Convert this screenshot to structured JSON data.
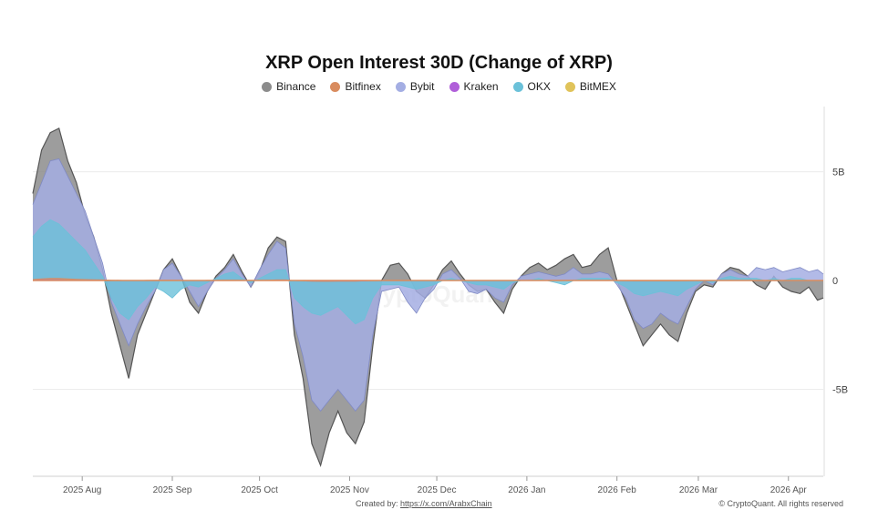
{
  "chart_data": {
    "type": "area",
    "title": "XRP Open Interest 30D (Change of XRP)",
    "xlabel": "",
    "ylabel": "",
    "ylim": [
      -9000000000,
      8000000000
    ],
    "y_ticks": [
      {
        "value": 5000000000,
        "label": "5B"
      },
      {
        "value": 0,
        "label": "0"
      },
      {
        "value": -5000000000,
        "label": "-5B"
      }
    ],
    "x_ticks": [
      {
        "date": "2025-08-01",
        "label": "2025 Aug"
      },
      {
        "date": "2025-09-01",
        "label": "2025 Sep"
      },
      {
        "date": "2025-10-01",
        "label": "2025 Oct"
      },
      {
        "date": "2025-11-01",
        "label": "2025 Nov"
      },
      {
        "date": "2025-12-01",
        "label": "2025 Dec"
      },
      {
        "date": "2026-01-01",
        "label": "2026 Jan"
      },
      {
        "date": "2026-02-01",
        "label": "2026 Feb"
      },
      {
        "date": "2026-03-01",
        "label": "2026 Mar"
      },
      {
        "date": "2026-04-01",
        "label": "2026 Apr"
      }
    ],
    "x_range": [
      "2025-07-15",
      "2026-04-13"
    ],
    "legend_position": "top-center",
    "grid": "horizontal",
    "x": [
      "2025-07-15",
      "2025-07-18",
      "2025-07-21",
      "2025-07-24",
      "2025-07-27",
      "2025-07-30",
      "2025-08-02",
      "2025-08-05",
      "2025-08-08",
      "2025-08-11",
      "2025-08-14",
      "2025-08-17",
      "2025-08-20",
      "2025-08-23",
      "2025-08-26",
      "2025-08-29",
      "2025-09-01",
      "2025-09-04",
      "2025-09-07",
      "2025-09-10",
      "2025-09-13",
      "2025-09-16",
      "2025-09-19",
      "2025-09-22",
      "2025-09-25",
      "2025-09-28",
      "2025-10-01",
      "2025-10-04",
      "2025-10-07",
      "2025-10-10",
      "2025-10-13",
      "2025-10-16",
      "2025-10-19",
      "2025-10-22",
      "2025-10-25",
      "2025-10-28",
      "2025-10-31",
      "2025-11-03",
      "2025-11-06",
      "2025-11-09",
      "2025-11-12",
      "2025-11-15",
      "2025-11-18",
      "2025-11-21",
      "2025-11-24",
      "2025-11-27",
      "2025-11-30",
      "2025-12-03",
      "2025-12-06",
      "2025-12-09",
      "2025-12-12",
      "2025-12-15",
      "2025-12-18",
      "2025-12-21",
      "2025-12-24",
      "2025-12-27",
      "2025-12-30",
      "2026-01-02",
      "2026-01-05",
      "2026-01-08",
      "2026-01-11",
      "2026-01-14",
      "2026-01-17",
      "2026-01-20",
      "2026-01-23",
      "2026-01-26",
      "2026-01-29",
      "2026-02-01",
      "2026-02-04",
      "2026-02-07",
      "2026-02-10",
      "2026-02-13",
      "2026-02-16",
      "2026-02-19",
      "2026-02-22",
      "2026-02-25",
      "2026-02-28",
      "2026-03-03",
      "2026-03-06",
      "2026-03-09",
      "2026-03-12",
      "2026-03-15",
      "2026-03-18",
      "2026-03-21",
      "2026-03-24",
      "2026-03-27",
      "2026-03-30",
      "2026-04-02",
      "2026-04-05",
      "2026-04-08",
      "2026-04-11",
      "2026-04-13"
    ],
    "series": [
      {
        "name": "Binance",
        "color": "#8c8c8c",
        "values": [
          4.0,
          6.0,
          6.8,
          7.0,
          5.5,
          4.5,
          3.0,
          2.0,
          0.5,
          -1.5,
          -3.0,
          -4.5,
          -2.5,
          -1.5,
          -0.5,
          0.5,
          1.0,
          0.2,
          -1.0,
          -1.5,
          -0.5,
          0.2,
          0.6,
          1.2,
          0.4,
          -0.3,
          0.4,
          1.5,
          2.0,
          1.8,
          -2.5,
          -4.5,
          -7.5,
          -8.5,
          -7.0,
          -6.0,
          -7.0,
          -7.5,
          -6.5,
          -3.0,
          0.0,
          0.7,
          0.8,
          0.3,
          -0.5,
          -0.8,
          -0.2,
          0.5,
          0.9,
          0.3,
          -0.2,
          -0.5,
          -0.4,
          -1.0,
          -1.5,
          -0.4,
          0.2,
          0.6,
          0.8,
          0.5,
          0.7,
          1.0,
          1.2,
          0.6,
          0.7,
          1.2,
          1.5,
          0.0,
          -1.0,
          -2.0,
          -3.0,
          -2.5,
          -2.0,
          -2.5,
          -2.8,
          -1.5,
          -0.5,
          -0.2,
          -0.3,
          0.3,
          0.6,
          0.5,
          0.2,
          -0.2,
          -0.4,
          0.2,
          -0.3,
          -0.5,
          -0.6,
          -0.3,
          -0.9,
          -0.8
        ]
      },
      {
        "name": "Bitfinex",
        "color": "#d98c5f",
        "values": [
          0.05,
          0.08,
          0.1,
          0.1,
          0.08,
          0.06,
          0.05,
          0.04,
          0.03,
          0.02,
          0.01,
          0.0,
          0.0,
          0.01,
          0.02,
          0.02,
          0.02,
          0.01,
          0.0,
          0.0,
          0.01,
          0.01,
          0.02,
          0.02,
          0.01,
          0.01,
          0.01,
          0.02,
          0.03,
          0.03,
          0.0,
          -0.02,
          -0.03,
          -0.04,
          -0.04,
          -0.03,
          -0.03,
          -0.03,
          -0.02,
          -0.01,
          0.0,
          0.01,
          0.01,
          0.0,
          0.0,
          0.0,
          0.0,
          0.0,
          0.01,
          0.0,
          0.0,
          0.0,
          0.0,
          0.0,
          0.0,
          0.0,
          0.0,
          0.01,
          0.01,
          0.01,
          0.01,
          0.01,
          0.01,
          0.01,
          0.01,
          0.01,
          0.02,
          0.0,
          -0.01,
          -0.02,
          -0.02,
          -0.02,
          -0.02,
          -0.02,
          -0.02,
          -0.01,
          0.0,
          0.0,
          0.0,
          0.0,
          0.01,
          0.0,
          0.0,
          0.0,
          0.0,
          0.0,
          0.0,
          0.0,
          0.0,
          0.0,
          0.0,
          0.0
        ]
      },
      {
        "name": "Bybit",
        "color": "#a4aee3",
        "values": [
          3.5,
          4.5,
          5.5,
          5.6,
          4.8,
          4.0,
          3.2,
          2.0,
          0.8,
          -1.0,
          -2.0,
          -3.0,
          -2.0,
          -1.2,
          -0.5,
          0.5,
          0.8,
          0.2,
          -0.5,
          -1.2,
          -0.5,
          0.1,
          0.5,
          1.0,
          0.3,
          -0.3,
          0.5,
          1.2,
          1.8,
          1.5,
          -2.0,
          -3.5,
          -5.5,
          -6.0,
          -5.5,
          -5.0,
          -5.5,
          -6.0,
          -5.5,
          -2.5,
          -0.5,
          -0.4,
          -0.3,
          -1.0,
          -1.5,
          -0.8,
          -0.4,
          0.3,
          0.5,
          0.1,
          -0.5,
          -0.6,
          -0.4,
          -0.8,
          -1.0,
          -0.2,
          0.2,
          0.3,
          0.4,
          0.3,
          0.2,
          0.3,
          0.6,
          0.3,
          0.3,
          0.4,
          0.3,
          -0.2,
          -0.8,
          -1.8,
          -2.2,
          -2.0,
          -1.5,
          -1.8,
          -2.0,
          -1.2,
          -0.4,
          0.0,
          -0.2,
          0.3,
          0.5,
          0.3,
          0.2,
          0.6,
          0.5,
          0.6,
          0.4,
          0.5,
          0.6,
          0.4,
          0.5,
          0.3
        ]
      },
      {
        "name": "Kraken",
        "color": "#b05fd9",
        "values": [
          0.02,
          0.03,
          0.03,
          0.03,
          0.02,
          0.02,
          0.02,
          0.01,
          0.01,
          0.0,
          0.0,
          0.0,
          0.0,
          0.0,
          0.0,
          0.0,
          0.0,
          0.0,
          0.0,
          0.0,
          0.0,
          0.0,
          0.0,
          0.0,
          0.0,
          0.0,
          0.0,
          0.0,
          0.01,
          0.01,
          0.0,
          0.0,
          -0.01,
          -0.01,
          -0.01,
          -0.01,
          -0.01,
          -0.01,
          -0.01,
          0.0,
          0.0,
          0.0,
          0.0,
          0.0,
          0.0,
          0.0,
          0.0,
          0.0,
          0.0,
          0.0,
          0.0,
          0.0,
          0.0,
          0.0,
          0.0,
          0.0,
          0.0,
          0.0,
          0.0,
          0.0,
          0.0,
          0.0,
          0.0,
          0.0,
          0.0,
          0.0,
          0.0,
          0.0,
          0.0,
          0.0,
          0.0,
          0.0,
          0.0,
          0.0,
          0.0,
          0.0,
          0.0,
          0.0,
          0.0,
          0.0,
          0.0,
          0.0,
          0.0,
          0.0,
          0.0,
          0.0,
          0.0,
          0.0,
          0.0,
          0.0,
          0.0,
          0.0
        ]
      },
      {
        "name": "OKX",
        "color": "#6bc1d9",
        "values": [
          2.0,
          2.5,
          2.8,
          2.6,
          2.2,
          1.8,
          1.4,
          0.8,
          0.2,
          -0.8,
          -1.5,
          -1.8,
          -1.2,
          -0.8,
          -0.3,
          -0.5,
          -0.8,
          -0.4,
          -0.2,
          -0.3,
          -0.1,
          0.1,
          0.3,
          0.4,
          0.1,
          -0.1,
          0.1,
          0.3,
          0.5,
          0.5,
          -0.8,
          -1.2,
          -1.5,
          -1.6,
          -1.4,
          -1.2,
          -1.6,
          -2.0,
          -1.8,
          -0.8,
          -0.2,
          -0.2,
          -0.2,
          -0.3,
          -0.4,
          -0.3,
          -0.2,
          0.0,
          0.1,
          0.0,
          -0.1,
          -0.2,
          -0.2,
          -0.3,
          -0.4,
          -0.1,
          0.0,
          0.0,
          0.1,
          0.0,
          -0.1,
          -0.2,
          0.0,
          0.1,
          0.1,
          0.1,
          0.1,
          -0.1,
          -0.3,
          -0.6,
          -0.7,
          -0.6,
          -0.5,
          -0.6,
          -0.7,
          -0.4,
          -0.2,
          0.0,
          -0.1,
          0.1,
          0.2,
          0.1,
          0.1,
          0.1,
          0.0,
          0.1,
          0.0,
          0.1,
          0.1,
          0.0,
          0.0,
          0.0
        ]
      },
      {
        "name": "BitMEX",
        "color": "#e0c35a",
        "values": [
          0.01,
          0.01,
          0.01,
          0.01,
          0.01,
          0.01,
          0.01,
          0.0,
          0.0,
          0.0,
          0.0,
          0.0,
          0.0,
          0.0,
          0.0,
          0.0,
          0.0,
          0.0,
          0.0,
          0.0,
          0.0,
          0.0,
          0.0,
          0.0,
          0.0,
          0.0,
          0.0,
          0.0,
          0.0,
          0.0,
          0.0,
          0.0,
          0.0,
          0.0,
          0.0,
          0.0,
          0.0,
          0.0,
          0.0,
          0.0,
          0.0,
          0.0,
          0.0,
          0.0,
          0.0,
          0.0,
          0.0,
          0.0,
          0.0,
          0.0,
          0.0,
          0.0,
          0.0,
          0.0,
          0.0,
          0.0,
          0.0,
          0.0,
          0.0,
          0.0,
          0.0,
          0.0,
          0.0,
          0.0,
          0.0,
          0.0,
          0.0,
          0.0,
          0.0,
          0.0,
          0.0,
          0.0,
          0.0,
          0.0,
          0.0,
          0.0,
          0.0,
          0.0,
          0.0,
          0.0,
          0.0,
          0.0,
          0.0,
          0.0,
          0.0,
          0.0,
          0.0,
          0.0,
          0.0,
          0.0,
          0.0,
          0.0
        ]
      }
    ],
    "values_unit_multiplier": 1000000000
  },
  "footer": {
    "created_by_label": "Created by:",
    "created_by_link": "https://x.com/ArabxChain",
    "copyright": "© CryptoQuant. All rights reserved"
  },
  "watermark": "CryptoQuant"
}
